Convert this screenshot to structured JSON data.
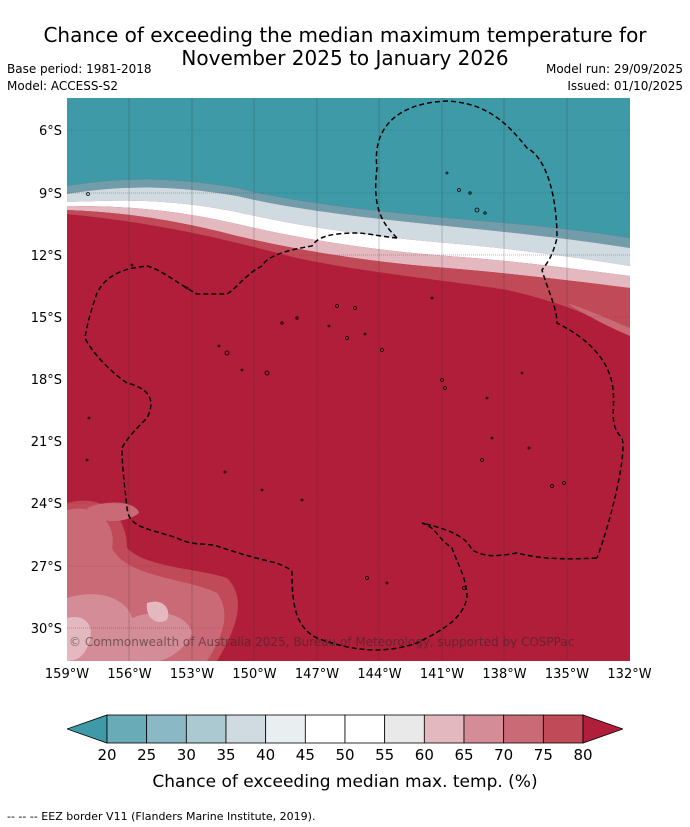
{
  "header": {
    "title_line1": "Chance of exceeding the median maximum temperature for",
    "title_line2": "November 2025 to January 2026",
    "base_period": "Base period: 1981-2018",
    "model": "Model: ACCESS-S2",
    "model_run": "Model run: 29/09/2025",
    "issued": "Issued: 01/10/2025"
  },
  "map": {
    "copyright": "© Commonwealth of Australia 2025, Bureau of Meteorology, supported by COSPPac",
    "lat_ticks": [
      "6°S",
      "9°S",
      "12°S",
      "15°S",
      "18°S",
      "21°S",
      "24°S",
      "27°S",
      "30°S"
    ],
    "lon_ticks": [
      "159°W",
      "156°W",
      "153°W",
      "150°W",
      "147°W",
      "144°W",
      "141°W",
      "138°W",
      "135°W",
      "132°W"
    ],
    "colors": {
      "below_20": "#3f9aa8",
      "band_20_25": "#6aabb8",
      "band_25_30": "#8ab8c4",
      "band_30_35": "#aac9d0",
      "band_35_40": "#cfdbe0",
      "band_40_45": "#e9eef1",
      "band_45_55": "#ffffff",
      "band_55_60": "#e9e9e9",
      "band_60_65": "#e4b8bf",
      "band_65_70": "#d48c96",
      "band_70_75": "#c96a76",
      "band_75_80": "#c04a58",
      "above_80": "#b11e3a"
    }
  },
  "colorbar": {
    "ticks": [
      "20",
      "25",
      "30",
      "35",
      "40",
      "45",
      "50",
      "55",
      "60",
      "65",
      "70",
      "75",
      "80"
    ],
    "label": "Chance of exceeding median max. temp. (%)"
  },
  "footer": {
    "legend_text": "--  --  -- EEZ border V11 (Flanders Marine Institute, 2019)."
  }
}
